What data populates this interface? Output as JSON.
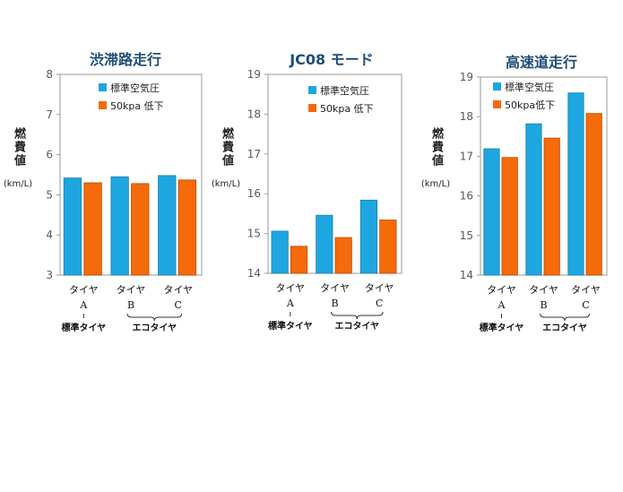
{
  "colors": {
    "standard": "#1ea6e0",
    "low": "#f56a0a",
    "title": "#1f4e79"
  },
  "chart_data": [
    {
      "type": "bar",
      "title": "渋滞路走行",
      "ylabel": "燃費値",
      "yunit": "(km/L)",
      "ylim": [
        3,
        8
      ],
      "yticks": [
        3,
        4,
        5,
        6,
        7,
        8
      ],
      "categories": [
        {
          "line1": "タイヤ",
          "line2": "A"
        },
        {
          "line1": "タイヤ",
          "line2": "B"
        },
        {
          "line1": "タイヤ",
          "line2": "C"
        }
      ],
      "groups": {
        "standard": "標準タイヤ",
        "eco": "エコタイヤ"
      },
      "series": [
        {
          "name": "標準空気圧",
          "values": [
            5.42,
            5.45,
            5.48
          ]
        },
        {
          "name": "50kpa 低下",
          "values": [
            5.3,
            5.28,
            5.37
          ]
        }
      ],
      "legend": "top-right"
    },
    {
      "type": "bar",
      "title": "JC08 モード",
      "ylabel": "燃費値",
      "yunit": "(km/L)",
      "ylim": [
        14,
        19
      ],
      "yticks": [
        14,
        15,
        16,
        17,
        18,
        19
      ],
      "categories": [
        {
          "line1": "タイヤ",
          "line2": "A"
        },
        {
          "line1": "タイヤ",
          "line2": "B"
        },
        {
          "line1": "タイヤ",
          "line2": "C"
        }
      ],
      "groups": {
        "standard": "標準タイヤ",
        "eco": "エコタイヤ"
      },
      "series": [
        {
          "name": "標準空気圧",
          "values": [
            15.06,
            15.46,
            15.84
          ]
        },
        {
          "name": "50kpa 低下",
          "values": [
            14.68,
            14.9,
            15.34
          ]
        }
      ],
      "legend": "top-right"
    },
    {
      "type": "bar",
      "title": "高速道走行",
      "ylabel": "燃費値",
      "yunit": "(km/L)",
      "ylim": [
        14,
        19
      ],
      "yticks": [
        14,
        15,
        16,
        17,
        18,
        19
      ],
      "categories": [
        {
          "line1": "タイヤ",
          "line2": "A"
        },
        {
          "line1": "タイヤ",
          "line2": "B"
        },
        {
          "line1": "タイヤ",
          "line2": "C"
        }
      ],
      "groups": {
        "standard": "標準タイヤ",
        "eco": "エコタイヤ"
      },
      "series": [
        {
          "name": "標準空気圧",
          "values": [
            17.19,
            17.82,
            18.6
          ]
        },
        {
          "name": "50kpa低下",
          "values": [
            16.97,
            17.46,
            18.08
          ]
        }
      ],
      "legend": "top-left"
    }
  ]
}
